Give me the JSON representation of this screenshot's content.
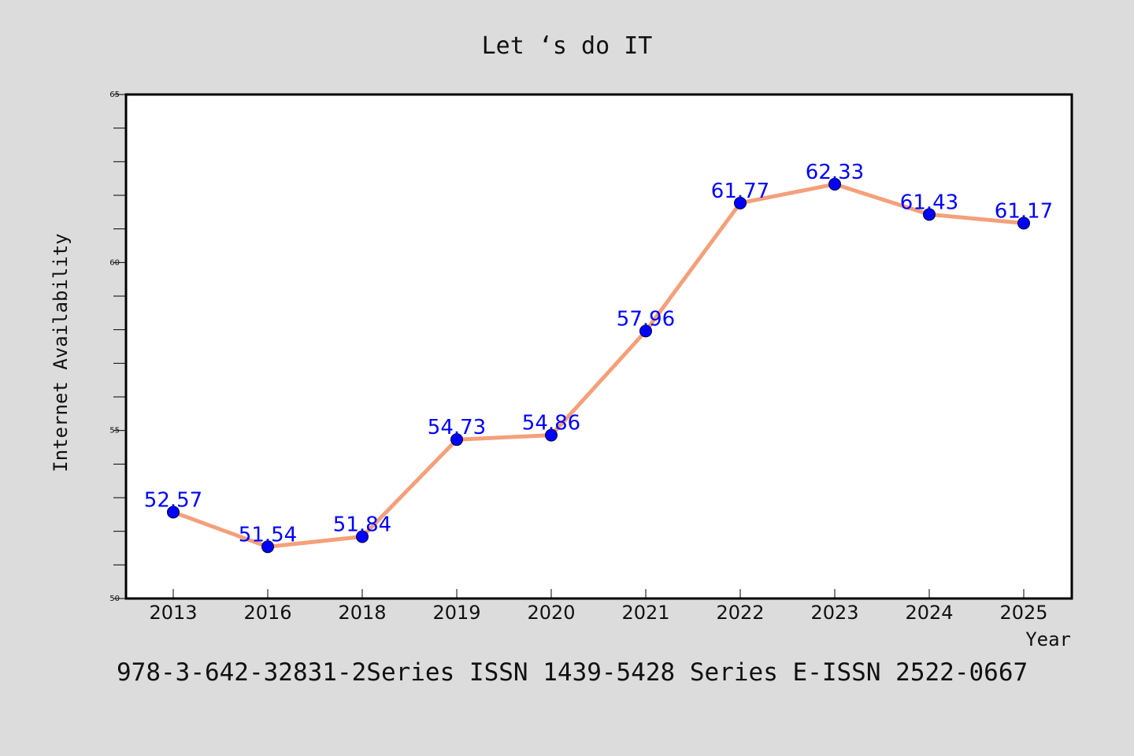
{
  "chart_data": {
    "type": "line",
    "title": "Let ‘s do IT",
    "xlabel": "Year",
    "ylabel": "Internet Availability",
    "categories": [
      "2013",
      "2016",
      "2018",
      "2019",
      "2020",
      "2021",
      "2022",
      "2023",
      "2024",
      "2025"
    ],
    "series": [
      {
        "values": [
          52.57,
          51.54,
          51.84,
          54.73,
          54.86,
          57.96,
          61.77,
          62.33,
          61.43,
          61.17
        ],
        "data_labels": [
          "52.57",
          "51.54",
          "51.84",
          "54.73",
          "54.86",
          "57.96",
          "61.77",
          "62.33",
          "61.43",
          "61.17"
        ],
        "line_color": "#f4a07a",
        "marker_color": "#0000ff"
      }
    ],
    "ylim": [
      50,
      65
    ],
    "yticks": [
      "50",
      "55",
      "60",
      "65"
    ],
    "grid": false,
    "legend": "none"
  },
  "footnote": "978-3-642-32831-2Series ISSN 1439-5428 Series E-ISSN 2522-0667",
  "colors": {
    "background": "#dcdcdc",
    "plot_background": "#ffffff",
    "axis": "#000000",
    "data_label": "#0000ff"
  }
}
